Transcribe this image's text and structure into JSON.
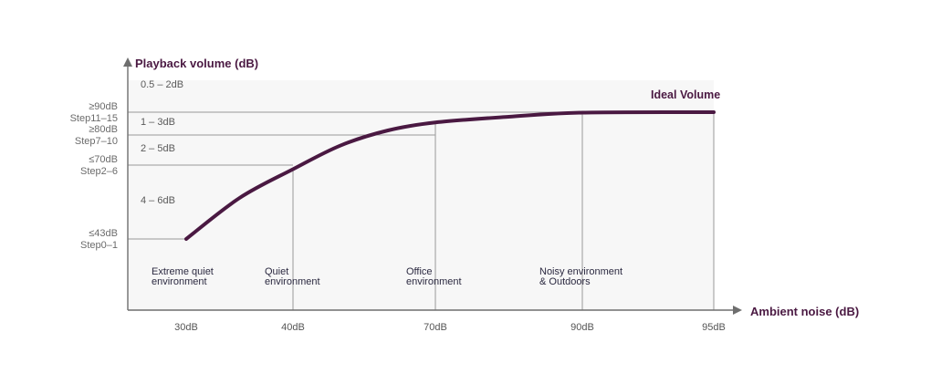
{
  "chart_data": {
    "type": "line",
    "ylabel": "Playback volume (dB)",
    "xlabel": "Ambient noise (dB)",
    "series": [
      {
        "name": "Ideal Volume",
        "x": [
          30,
          35,
          40,
          50,
          60,
          70,
          80,
          90,
          95
        ],
        "y": [
          43,
          58,
          68.5,
          76.5,
          82,
          85.5,
          88,
          89.8,
          90
        ]
      }
    ],
    "x_ticks": [
      {
        "value": 30,
        "label": "30dB",
        "environment": [
          "Extreme quiet",
          "environment"
        ]
      },
      {
        "value": 40,
        "label": "40dB",
        "environment": [
          "Quiet",
          "environment"
        ]
      },
      {
        "value": 70,
        "label": "70dB",
        "environment": [
          "Office",
          "environment"
        ]
      },
      {
        "value": 90,
        "label": "90dB",
        "environment": [
          "Noisy environment",
          "& Outdoors"
        ]
      },
      {
        "value": 95,
        "label": "95dB",
        "environment": []
      }
    ],
    "y_levels": [
      {
        "value": 90,
        "lines": [
          "≥90dB",
          "Step11–15"
        ]
      },
      {
        "value": 80,
        "lines": [
          "≥80dB",
          "Step7–10"
        ]
      },
      {
        "value": 70,
        "lines": [
          "≤70dB",
          "Step2–6"
        ]
      },
      {
        "value": 43,
        "lines": [
          "≤43dB",
          "Step0–1"
        ]
      }
    ],
    "increment_bands": [
      "0.5 – 2dB",
      "1 – 3dB",
      "2 – 5dB",
      "4 – 6dB"
    ],
    "colors": {
      "curve": "#4a1942",
      "guide": "#9a9a9a",
      "axis": "#6e6e6e",
      "plot_bg": "#f7f7f7"
    }
  }
}
